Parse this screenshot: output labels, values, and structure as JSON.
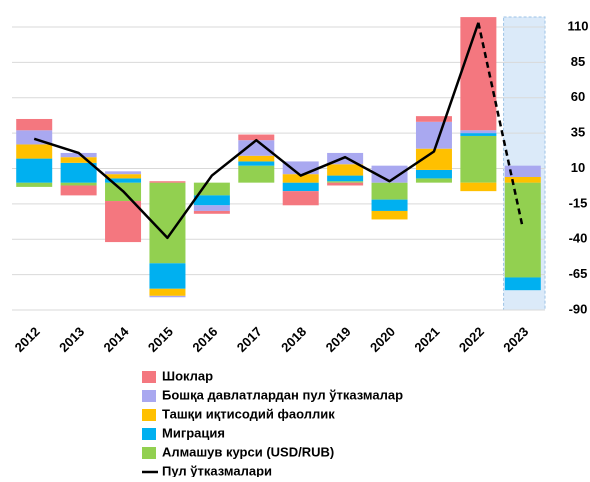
{
  "chart_data": {
    "type": "bar",
    "categories": [
      "2012",
      "2013",
      "2014",
      "2015",
      "2016",
      "2017",
      "2018",
      "2019",
      "2020",
      "2021",
      "2022",
      "2023"
    ],
    "series": [
      {
        "name": "Шоклар",
        "color": "#f4777f",
        "values": [
          8,
          -7,
          -29,
          1,
          -2,
          4,
          -10,
          -2,
          0,
          4,
          80,
          0
        ]
      },
      {
        "name": "Бошқа давлатлардан пул ўтказмалар",
        "color": "#a9a8f0",
        "values": [
          10,
          3,
          2,
          -1,
          -4,
          11,
          9,
          8,
          12,
          19,
          2,
          8
        ]
      },
      {
        "name": "Ташқи иқтисодий фаоллик",
        "color": "#ffc000",
        "values": [
          10,
          4,
          3,
          -5,
          0,
          4,
          6,
          8,
          -6,
          15,
          -6,
          4
        ]
      },
      {
        "name": "Миграция",
        "color": "#00b0f0",
        "values": [
          17,
          14,
          3,
          -18,
          -7,
          3,
          -6,
          4,
          -8,
          6,
          2,
          -9
        ]
      },
      {
        "name": "Алмашув курси (USD/RUB)",
        "color": "#92d050",
        "values": [
          -3,
          -2,
          -13,
          -57,
          -9,
          12,
          0,
          1,
          -12,
          3,
          33,
          -67
        ]
      }
    ],
    "line": {
      "name": "Пул ўтказмалари",
      "color": "#000000",
      "values": [
        31,
        21,
        -6,
        -39,
        5,
        30,
        5,
        18,
        1,
        22,
        113,
        -32
      ]
    },
    "ylim": [
      -90,
      110
    ],
    "yticks": [
      110,
      85,
      60,
      35,
      10,
      -15,
      -40,
      -65,
      -90
    ],
    "grid": true
  }
}
